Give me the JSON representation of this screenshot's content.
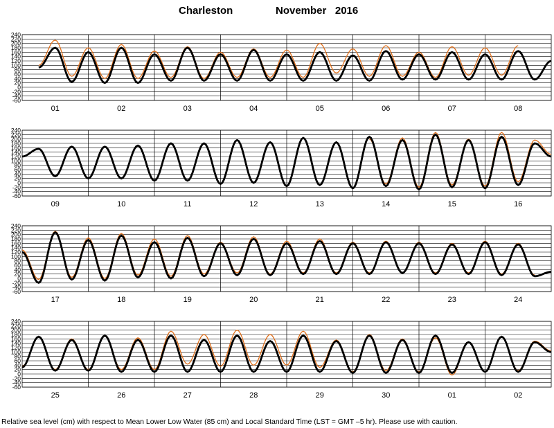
{
  "header": {
    "station": "Charleston",
    "period": "November   2016"
  },
  "caption": "Relative sea level (cm) with respect to Mean Lower Low Water (85 cm) and Local Standard Time (LST = GMT –5 hr). Please use with caution.",
  "colors": {
    "predicted": "#000000",
    "observed": "#e0701c",
    "grid": "#000000"
  },
  "chart_data": [
    {
      "type": "line",
      "panel": 1,
      "days": [
        "01",
        "02",
        "03",
        "04",
        "05",
        "06",
        "07",
        "08"
      ],
      "ylim": [
        -60,
        240
      ],
      "yticks": [
        240,
        220,
        200,
        180,
        160,
        140,
        120,
        100,
        80,
        60,
        40,
        20,
        0,
        -20,
        -40,
        -60
      ],
      "series": [
        {
          "role": "predicted",
          "x": [
            0.25,
            0.5,
            0.75,
            1,
            1.25,
            1.5,
            1.75,
            2,
            2.25,
            2.5,
            2.75,
            3,
            3.25,
            3.5,
            3.75,
            4,
            4.25,
            4.5,
            4.75,
            5,
            5.25,
            5.5,
            5.75,
            6,
            6.25,
            6.5,
            6.75,
            7,
            7.25,
            7.5,
            7.75,
            8
          ],
          "values": [
            90,
            180,
            25,
            160,
            20,
            180,
            20,
            150,
            30,
            180,
            30,
            150,
            30,
            170,
            30,
            150,
            30,
            160,
            30,
            145,
            30,
            165,
            35,
            150,
            35,
            160,
            35,
            150,
            35,
            165,
            35,
            120
          ]
        },
        {
          "role": "observed",
          "x": [
            0.25,
            0.5,
            0.75,
            1,
            1.25,
            1.5,
            1.75,
            2,
            2.25,
            2.5,
            2.75,
            3,
            3.25,
            3.5,
            3.75,
            4,
            4.25,
            4.5,
            4.75,
            5,
            5.25,
            5.5,
            5.75,
            6,
            6.25,
            6.5,
            6.75,
            7,
            7.25,
            7.5,
            7.75,
            8
          ],
          "values": [
            100,
            215,
            50,
            180,
            40,
            195,
            40,
            165,
            45,
            185,
            40,
            160,
            45,
            175,
            45,
            170,
            45,
            200,
            65,
            175,
            50,
            190,
            50,
            160,
            45,
            185,
            55,
            180,
            55,
            190,
            null,
            null
          ]
        }
      ]
    },
    {
      "type": "line",
      "panel": 2,
      "days": [
        "09",
        "10",
        "11",
        "12",
        "13",
        "14",
        "15",
        "16"
      ],
      "ylim": [
        -60,
        240
      ],
      "yticks": [
        240,
        220,
        200,
        180,
        160,
        140,
        120,
        100,
        80,
        60,
        40,
        20,
        0,
        -20,
        -40,
        -60
      ],
      "series": [
        {
          "role": "predicted",
          "x": [
            0,
            0.25,
            0.5,
            0.75,
            1,
            1.25,
            1.5,
            1.75,
            2,
            2.25,
            2.5,
            2.75,
            3,
            3.25,
            3.5,
            3.75,
            4,
            4.25,
            4.5,
            4.75,
            5,
            5.25,
            5.5,
            5.75,
            6,
            6.25,
            6.5,
            6.75,
            7,
            7.25,
            7.5,
            7.75,
            8
          ],
          "values": [
            120,
            155,
            30,
            165,
            20,
            165,
            20,
            170,
            10,
            180,
            10,
            180,
            -5,
            195,
            0,
            185,
            -15,
            205,
            -10,
            185,
            -25,
            210,
            -15,
            195,
            -30,
            220,
            -20,
            195,
            -25,
            210,
            -10,
            180,
            120
          ]
        },
        {
          "role": "observed",
          "x": [
            5.25,
            5.5,
            5.75,
            6,
            6.25,
            6.5,
            6.75,
            7,
            7.25,
            7.5,
            7.75,
            8
          ],
          "values": [
            200,
            -5,
            205,
            -20,
            230,
            -10,
            200,
            -15,
            230,
            5,
            195,
            130
          ]
        }
      ]
    },
    {
      "type": "line",
      "panel": 3,
      "days": [
        "17",
        "18",
        "19",
        "20",
        "21",
        "22",
        "23",
        "24"
      ],
      "ylim": [
        -60,
        240
      ],
      "yticks": [
        240,
        220,
        200,
        180,
        160,
        140,
        120,
        100,
        80,
        60,
        40,
        20,
        0,
        -20,
        -40,
        -60
      ],
      "series": [
        {
          "role": "predicted",
          "x": [
            0,
            0.25,
            0.5,
            0.75,
            1,
            1.25,
            1.5,
            1.75,
            2,
            2.25,
            2.5,
            2.75,
            3,
            3.25,
            3.5,
            3.75,
            4,
            4.25,
            4.5,
            4.75,
            5,
            5.25,
            5.5,
            5.75,
            6,
            6.25,
            6.5,
            6.75,
            7,
            7.25,
            7.5,
            7.75,
            8
          ],
          "values": [
            120,
            -20,
            210,
            -5,
            175,
            -10,
            195,
            5,
            165,
            0,
            185,
            10,
            160,
            15,
            180,
            15,
            160,
            20,
            170,
            20,
            160,
            20,
            165,
            25,
            160,
            20,
            155,
            20,
            165,
            15,
            155,
            10,
            30
          ]
        },
        {
          "role": "observed",
          "x": [
            0,
            0.25,
            0.5,
            0.75,
            1,
            1.25,
            1.5,
            1.75,
            2,
            2.25,
            2.5,
            2.75,
            3,
            3.25,
            3.5,
            3.75,
            4,
            4.25,
            4.5,
            4.75,
            5,
            5.25,
            5.5,
            5.75,
            6,
            6.25,
            6.5,
            6.75,
            7,
            7.25,
            7.5,
            7.75
          ],
          "values": [
            130,
            -5,
            215,
            5,
            185,
            0,
            205,
            15,
            180,
            10,
            195,
            20,
            165,
            25,
            190,
            20,
            170,
            25,
            180,
            25,
            165,
            25,
            170,
            25,
            165,
            25,
            160,
            25,
            170,
            20,
            160,
            15
          ]
        }
      ]
    },
    {
      "type": "line",
      "panel": 4,
      "days": [
        "25",
        "26",
        "27",
        "28",
        "29",
        "30",
        "01",
        "02"
      ],
      "ylim": [
        -60,
        240
      ],
      "yticks": [
        240,
        220,
        200,
        180,
        160,
        140,
        120,
        100,
        80,
        60,
        40,
        20,
        0,
        -20,
        -40,
        -60
      ],
      "series": [
        {
          "role": "predicted",
          "x": [
            0,
            0.25,
            0.5,
            0.75,
            1,
            1.25,
            1.5,
            1.75,
            2,
            2.25,
            2.5,
            2.75,
            3,
            3.25,
            3.5,
            3.75,
            4,
            4.25,
            4.5,
            4.75,
            5,
            5.25,
            5.5,
            5.75,
            6,
            6.25,
            6.5,
            6.75,
            7,
            7.25,
            7.5,
            7.75,
            8
          ],
          "values": [
            30,
            170,
            15,
            155,
            15,
            175,
            10,
            155,
            10,
            175,
            10,
            155,
            10,
            175,
            10,
            150,
            10,
            175,
            10,
            150,
            5,
            175,
            5,
            155,
            5,
            175,
            5,
            145,
            10,
            170,
            10,
            145,
            100
          ]
        },
        {
          "role": "observed",
          "x": [
            0,
            0.25,
            0.5,
            0.75,
            1,
            1.25,
            1.5,
            1.75,
            2,
            2.25,
            2.5,
            2.75,
            3,
            3.25,
            3.5,
            3.75,
            4,
            4.25,
            4.5,
            4.75,
            5,
            5.25,
            5.5,
            5.75,
            6,
            6.25,
            6.5,
            6.75,
            7,
            7.25,
            7.5,
            7.75,
            8
          ],
          "values": [
            35,
            170,
            20,
            160,
            20,
            175,
            20,
            165,
            20,
            195,
            45,
            180,
            35,
            200,
            40,
            180,
            40,
            195,
            30,
            155,
            10,
            180,
            15,
            160,
            10,
            165,
            -5,
            145,
            10,
            170,
            15,
            150,
            105
          ]
        }
      ]
    }
  ]
}
